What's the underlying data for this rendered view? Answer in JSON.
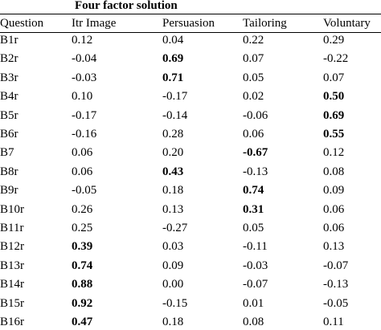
{
  "table": {
    "title": "Four factor solution",
    "header": [
      "Question",
      "Itr Image",
      "Persuasion",
      "Tailoring",
      "Voluntary"
    ],
    "rows": [
      {
        "cells": [
          "B1r",
          "0.12",
          "0.04",
          "0.22",
          "0.29"
        ]
      },
      {
        "cells": [
          "B2r",
          "-0.04",
          "0.69",
          "0.07",
          "-0.22"
        ],
        "bold": 2
      },
      {
        "cells": [
          "B3r",
          "-0.03",
          "0.71",
          "0.05",
          "0.07"
        ],
        "bold": 2
      },
      {
        "cells": [
          "B4r",
          "0.10",
          "-0.17",
          "0.02",
          "0.50"
        ],
        "bold": 4
      },
      {
        "cells": [
          "B5r",
          "-0.17",
          "-0.14",
          "-0.06",
          "0.69"
        ],
        "bold": 4
      },
      {
        "cells": [
          "B6r",
          "-0.16",
          "0.28",
          "0.06",
          "0.55"
        ],
        "bold": 4
      },
      {
        "cells": [
          "B7",
          "0.06",
          "0.20",
          "-0.67",
          "0.12"
        ],
        "bold": 3
      },
      {
        "cells": [
          "B8r",
          "0.06",
          "0.43",
          "-0.13",
          "0.08"
        ],
        "bold": 2
      },
      {
        "cells": [
          "B9r",
          "-0.05",
          "0.18",
          "0.74",
          "0.09"
        ],
        "bold": 3
      },
      {
        "cells": [
          "B10r",
          "0.26",
          "0.13",
          "0.31",
          "0.06"
        ],
        "bold": 3
      },
      {
        "cells": [
          "B11r",
          "0.25",
          "-0.27",
          "0.05",
          "0.06"
        ]
      },
      {
        "cells": [
          "B12r",
          "0.39",
          "0.03",
          "-0.11",
          "0.13"
        ],
        "bold": 1
      },
      {
        "cells": [
          "B13r",
          "0.74",
          "0.09",
          "-0.03",
          "-0.07"
        ],
        "bold": 1
      },
      {
        "cells": [
          "B14r",
          "0.88",
          "0.00",
          "-0.07",
          "-0.13"
        ],
        "bold": 1
      },
      {
        "cells": [
          "B15r",
          "0.92",
          "-0.15",
          "0.01",
          "-0.05"
        ],
        "bold": 1
      },
      {
        "cells": [
          "B16r",
          "0.47",
          "0.18",
          "0.08",
          "0.11"
        ],
        "bold": 1
      }
    ]
  }
}
